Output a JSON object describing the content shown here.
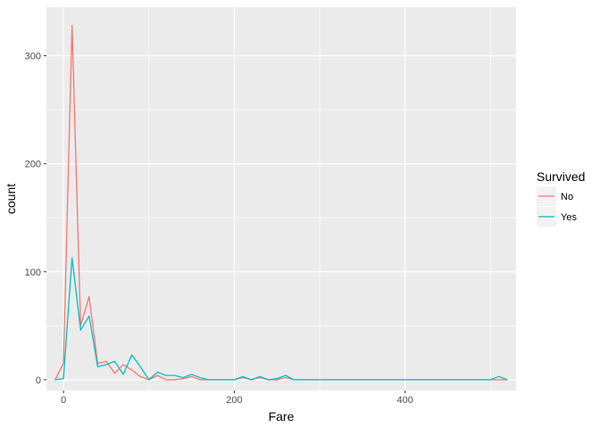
{
  "chart_data": {
    "type": "line",
    "xlabel": "Fare",
    "ylabel": "count",
    "xlim": [
      -20,
      530
    ],
    "ylim": [
      -10,
      345
    ],
    "x_ticks": [
      0,
      200,
      400
    ],
    "y_ticks": [
      0,
      100,
      200,
      300
    ],
    "x_tick_labels": [
      "0",
      "200",
      "400"
    ],
    "y_tick_labels": [
      "0",
      "100",
      "200",
      "300"
    ],
    "grid": true,
    "background": "#ebebeb",
    "legend": {
      "title": "Survived",
      "placement": "right"
    },
    "x": [
      -10,
      0,
      10,
      20,
      30,
      40,
      50,
      60,
      70,
      80,
      90,
      100,
      110,
      120,
      130,
      140,
      150,
      160,
      170,
      180,
      190,
      200,
      210,
      220,
      230,
      240,
      250,
      260,
      270,
      280,
      290,
      300,
      310,
      320,
      330,
      340,
      350,
      360,
      370,
      380,
      390,
      400,
      410,
      420,
      430,
      440,
      450,
      460,
      470,
      480,
      490,
      500,
      510,
      520
    ],
    "series": [
      {
        "name": "No",
        "color": "#f8766d",
        "values": [
          0,
          15,
          328,
          50,
          77,
          15,
          17,
          6,
          14,
          9,
          3,
          0,
          4,
          0,
          0,
          1,
          3,
          0,
          0,
          0,
          0,
          0,
          2,
          0,
          2,
          0,
          0,
          2,
          0,
          0,
          0,
          0,
          0,
          0,
          0,
          0,
          0,
          0,
          0,
          0,
          0,
          0,
          0,
          0,
          0,
          0,
          0,
          0,
          0,
          0,
          0,
          0,
          0,
          0
        ]
      },
      {
        "name": "Yes",
        "color": "#00bfc4",
        "values": [
          0,
          1,
          113,
          46,
          59,
          12,
          14,
          17,
          5,
          23,
          12,
          0,
          7,
          4,
          4,
          2,
          5,
          2,
          0,
          0,
          0,
          0,
          3,
          0,
          3,
          0,
          1,
          4,
          0,
          0,
          0,
          0,
          0,
          0,
          0,
          0,
          0,
          0,
          0,
          0,
          0,
          0,
          0,
          0,
          0,
          0,
          0,
          0,
          0,
          0,
          0,
          0,
          3,
          0
        ]
      }
    ]
  }
}
